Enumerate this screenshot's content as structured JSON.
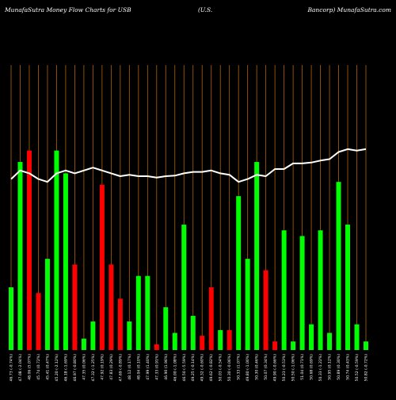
{
  "header": {
    "left": "MunafaSutra  Money Flow  Charts for USB",
    "middle": "(U.S.",
    "right": "Bancorp) MunafaSutra.com"
  },
  "chart_data": {
    "type": "bar",
    "title": "MunafaSutra Money Flow Charts for USB (U.S. Bancorp)",
    "categories": [
      "Fri 17 Jan 2025",
      "Thu 16 Jan 2025",
      "Wed 15 Jan 2025",
      "Tue 14 Jan 2025",
      "Mon 13 Jan 2025",
      "Fri 10 Jan 2025",
      "Wed 08 Jan 2025",
      "Tue 07 Jan 2025",
      "Mon 06 Jan 2025",
      "Fri 03 Jan 2025",
      "Thu 02 Jan 2025",
      "Tue 31 Dec 2024",
      "Mon 30 Dec 2024",
      "Fri 27 Dec 2024",
      "Thu 26 Dec 2024",
      "Tue 24 Dec 2024",
      "Mon 23 Dec 2024",
      "Fri 20 Dec 2024",
      "Thu 19 Dec 2024",
      "Wed 18 Dec 2024",
      "Tue 17 Dec 2024",
      "Mon 16 Dec 2024",
      "Fri 13 Dec 2024",
      "Thu 12 Dec 2024",
      "Wed 11 Dec 2024",
      "Tue 10 Dec 2024",
      "Mon 09 Dec 2024",
      "Fri 06 Dec 2024",
      "Thu 05 Dec 2024",
      "Wed 04 Dec 2024",
      "Tue 03 Dec 2024",
      "Mon 02 Dec 2024",
      "Fri 29 Nov 2024",
      "Wed 27 Nov 2024",
      "Tue 26 Nov 2024",
      "Mon 25 Nov 2024",
      "Fri 22 Nov 2024",
      "Thu 21 Nov 2024",
      "Wed 20 Nov 2024",
      "Tue 19 Nov 2024"
    ],
    "tick_labels": [
      "46.73 (-0.74%)",
      "47.08 (-2.04%)",
      "48.06 (5.07%)",
      "45.74 (0.72%)",
      "45.41 (0.47%)",
      "45.20 (-2.12%)",
      "46.18 (-1.69%)",
      "46.97 (-0.80%)",
      "47.35 (0.06%)",
      "47.32 (-1.25%)",
      "47.92 (0.19%)",
      "47.83 (0.29%)",
      "47.69 (-0.89%)",
      "48.12 (0.17%)",
      "48.04 (0.10%)",
      "47.99 (1.40%)",
      "47.33 (0.91%)",
      "46.90 (1.96%)",
      "46.00 (-1.08%)",
      "46.50 (-5.59%)",
      "49.25 (-0.14%)",
      "49.32 (-0.60%)",
      "49.62 (-0.82%)",
      "50.03 (-0.54%)",
      "50.30 (-0.06%)",
      "50.33 (1.07%)",
      "49.80 (-1.00%)",
      "50.30 (0.46%)",
      "50.07 (0.34%)",
      "49.90 (-0.66%)",
      "50.23 (-0.53%)",
      "50.50 (-1.06%)",
      "51.04 (0.71%)",
      "50.68 (0.69%)",
      "50.33 (-1.22%)",
      "50.95 (0.12%)",
      "50.89 (0.30%)",
      "50.74 (0.43%)",
      "50.52 (-0.59%)",
      "50.82 (-0.72%)"
    ],
    "series": [
      {
        "values": [
          22,
          66,
          70,
          20,
          32,
          70,
          62,
          30,
          4,
          10,
          58,
          30,
          18,
          10,
          26,
          26,
          2,
          15,
          6,
          44,
          12,
          5,
          22,
          7,
          7,
          54,
          32,
          66,
          28,
          3,
          42,
          3,
          40,
          9,
          42,
          6,
          59,
          44,
          9,
          3
        ],
        "colors": [
          "green",
          "green",
          "red",
          "red",
          "green",
          "green",
          "green",
          "red",
          "green",
          "green",
          "red",
          "red",
          "red",
          "green",
          "green",
          "green",
          "red",
          "green",
          "green",
          "green",
          "green",
          "red",
          "red",
          "green",
          "red",
          "green",
          "green",
          "green",
          "red",
          "red",
          "green",
          "green",
          "green",
          "green",
          "green",
          "green",
          "green",
          "green",
          "green",
          "green"
        ]
      },
      {
        "type": "line",
        "values": [
          60,
          63,
          62,
          60,
          59,
          62,
          63,
          62,
          63,
          64,
          63,
          62,
          61,
          61.5,
          61,
          61,
          60.5,
          61,
          61.2,
          62,
          62.5,
          62.5,
          63,
          62,
          61.5,
          59,
          60,
          61.5,
          61,
          63.5,
          63.5,
          65.5,
          65.5,
          65.8,
          66.5,
          67,
          69.5,
          70.5,
          70,
          70.5
        ]
      }
    ],
    "ylim": [
      0,
      100
    ],
    "grid": true,
    "colors": {
      "up": "#00ff00",
      "down": "#ff0000",
      "grid": "#b26400",
      "line": "#ffffff",
      "background": "#000000"
    }
  }
}
